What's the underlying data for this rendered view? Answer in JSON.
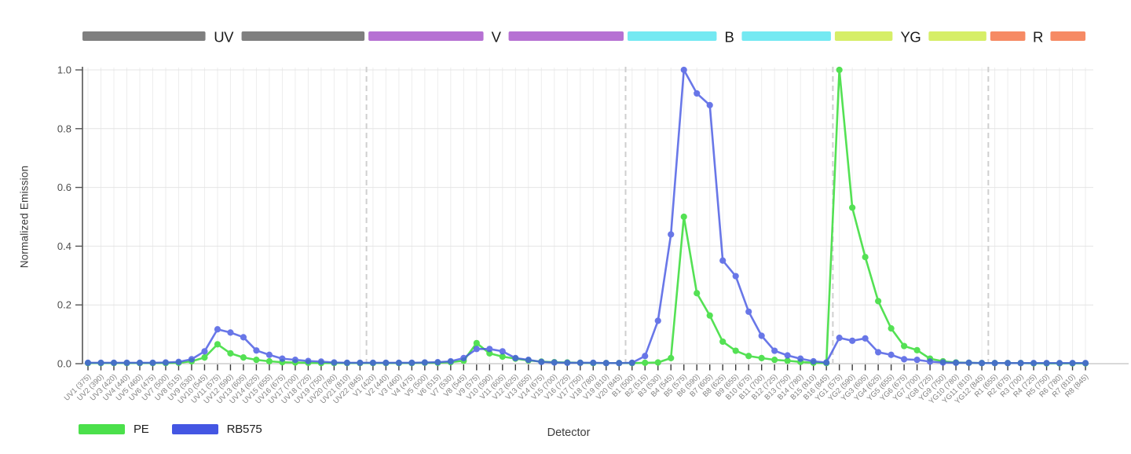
{
  "chart_data": {
    "type": "line",
    "xlabel": "Detector",
    "ylabel": "Normalized Emission",
    "ylim": [
      0,
      1
    ],
    "grid": true,
    "legend_position": "bottom-left",
    "y_axis": {
      "ticks": [
        0.0,
        0.2,
        0.4,
        0.6,
        0.8,
        1.0
      ],
      "labels": [
        "0.0",
        "0.2",
        "0.4",
        "0.6",
        "0.8",
        "1.0"
      ]
    },
    "detector_groups": [
      {
        "label": "UV",
        "color": "#7f7f7f",
        "count": 22
      },
      {
        "label": "V",
        "color": "#b671d3",
        "count": 20
      },
      {
        "label": "B",
        "color": "#74e9f2",
        "count": 16
      },
      {
        "label": "YG",
        "color": "#d6ee67",
        "count": 12
      },
      {
        "label": "R",
        "color": "#f68a64",
        "count": 8
      }
    ],
    "categories": [
      "UV1 (375)",
      "UV2 (390)",
      "UV3 (420)",
      "UV4 (440)",
      "UV5 (460)",
      "UV6 (475)",
      "UV7 (500)",
      "UV8 (515)",
      "UV9 (530)",
      "UV10 (545)",
      "UV11 (575)",
      "UV12 (590)",
      "UV13 (605)",
      "UV14 (625)",
      "UV15 (655)",
      "UV16 (675)",
      "UV17 (700)",
      "UV18 (725)",
      "UV19 (750)",
      "UV20 (780)",
      "UV21 (810)",
      "UV22 (845)",
      "V1 (420)",
      "V2 (440)",
      "V3 (460)",
      "V4 (475)",
      "V5 (500)",
      "V6 (515)",
      "V7 (530)",
      "V8 (545)",
      "V9 (575)",
      "V10 (590)",
      "V11 (605)",
      "V12 (625)",
      "V13 (655)",
      "V14 (675)",
      "V15 (700)",
      "V16 (725)",
      "V17 (750)",
      "V18 (780)",
      "V19 (810)",
      "V20 (845)",
      "B1 (500)",
      "B2 (515)",
      "B3 (530)",
      "B4 (545)",
      "B5 (575)",
      "B6 (590)",
      "B7 (605)",
      "B8 (625)",
      "B9 (655)",
      "B10 (675)",
      "B11 (700)",
      "B12 (725)",
      "B13 (750)",
      "B14 (780)",
      "B15 (810)",
      "B16 (845)",
      "YG1 (575)",
      "YG2 (590)",
      "YG3 (605)",
      "YG4 (625)",
      "YG5 (655)",
      "YG6 (675)",
      "YG7 (700)",
      "YG8 (725)",
      "YG9 (750)",
      "YG10 (780)",
      "YG11 (810)",
      "YG12 (845)",
      "R1 (655)",
      "R2 (675)",
      "R3 (700)",
      "R4 (725)",
      "R5 (750)",
      "R6 (780)",
      "R7 (810)",
      "R8 (845)"
    ],
    "series": [
      {
        "name": "PE",
        "color": "#4be04b",
        "values": [
          0.002,
          0.002,
          0.002,
          0.002,
          0.002,
          0.002,
          0.002,
          0.003,
          0.008,
          0.021,
          0.066,
          0.035,
          0.021,
          0.013,
          0.008,
          0.005,
          0.004,
          0.003,
          0.002,
          0.002,
          0.002,
          0.002,
          0.002,
          0.002,
          0.002,
          0.002,
          0.003,
          0.003,
          0.005,
          0.01,
          0.07,
          0.035,
          0.024,
          0.017,
          0.011,
          0.007,
          0.005,
          0.004,
          0.003,
          0.002,
          0.002,
          0.002,
          0.002,
          0.003,
          0.004,
          0.019,
          0.5,
          0.24,
          0.164,
          0.075,
          0.044,
          0.026,
          0.019,
          0.013,
          0.01,
          0.006,
          0.003,
          0.002,
          1.0,
          0.531,
          0.363,
          0.213,
          0.12,
          0.06,
          0.046,
          0.017,
          0.008,
          0.004,
          0.003,
          0.002,
          0.002,
          0.002,
          0.002,
          0.001,
          0.001,
          0.001,
          0.001,
          0.001
        ]
      },
      {
        "name": "RB575",
        "color": "#4456e3",
        "values": [
          0.003,
          0.003,
          0.003,
          0.003,
          0.003,
          0.003,
          0.004,
          0.006,
          0.015,
          0.042,
          0.117,
          0.106,
          0.09,
          0.045,
          0.03,
          0.017,
          0.013,
          0.009,
          0.007,
          0.004,
          0.003,
          0.003,
          0.003,
          0.003,
          0.003,
          0.003,
          0.004,
          0.005,
          0.008,
          0.019,
          0.05,
          0.05,
          0.042,
          0.019,
          0.013,
          0.006,
          0.004,
          0.003,
          0.003,
          0.003,
          0.002,
          0.002,
          0.003,
          0.026,
          0.146,
          0.44,
          1.0,
          0.92,
          0.88,
          0.351,
          0.298,
          0.177,
          0.095,
          0.044,
          0.028,
          0.017,
          0.008,
          0.004,
          0.088,
          0.078,
          0.086,
          0.039,
          0.03,
          0.015,
          0.013,
          0.007,
          0.004,
          0.003,
          0.003,
          0.002,
          0.002,
          0.002,
          0.002,
          0.002,
          0.002,
          0.002,
          0.002,
          0.002
        ]
      }
    ]
  }
}
